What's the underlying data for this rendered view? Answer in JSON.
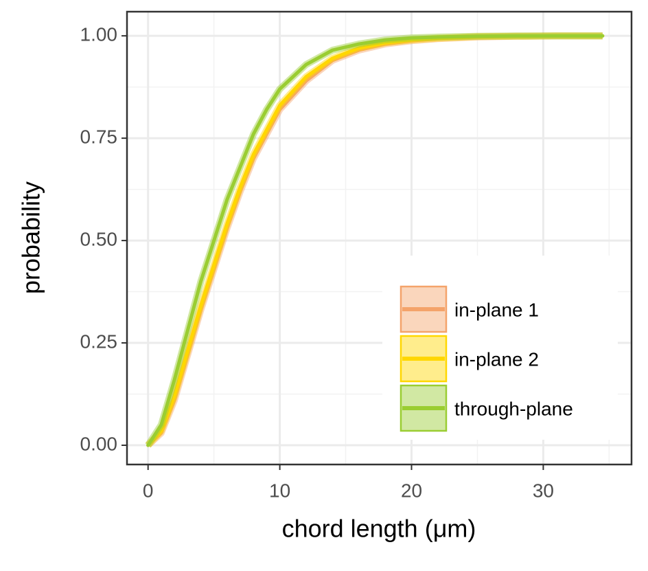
{
  "chart_data": {
    "type": "line",
    "x_label": "chord length (μm)",
    "y_label": "probability",
    "x": [
      0,
      1,
      2,
      3,
      4,
      5,
      6,
      7,
      8,
      9,
      10,
      12,
      14,
      16,
      18,
      20,
      22,
      25,
      28,
      31,
      34.5
    ],
    "series": [
      {
        "name": "in-plane 1",
        "color": "#f4a36a",
        "values": [
          0,
          0.03,
          0.11,
          0.22,
          0.33,
          0.43,
          0.53,
          0.62,
          0.7,
          0.76,
          0.82,
          0.89,
          0.94,
          0.965,
          0.98,
          0.988,
          0.993,
          0.997,
          0.999,
          1,
          1
        ]
      },
      {
        "name": "in-plane 2",
        "color": "#ffd700",
        "values": [
          0,
          0.035,
          0.12,
          0.23,
          0.34,
          0.44,
          0.54,
          0.63,
          0.71,
          0.77,
          0.83,
          0.9,
          0.945,
          0.97,
          0.983,
          0.99,
          0.994,
          0.998,
          0.999,
          1,
          1
        ]
      },
      {
        "name": "through-plane",
        "color": "#9acd32",
        "values": [
          0,
          0.05,
          0.16,
          0.28,
          0.4,
          0.5,
          0.6,
          0.68,
          0.76,
          0.82,
          0.87,
          0.93,
          0.965,
          0.98,
          0.99,
          0.995,
          0.997,
          0.999,
          1,
          1,
          1
        ]
      }
    ],
    "xlim": [
      -1.6,
      36.7
    ],
    "ylim": [
      -0.047,
      1.059
    ],
    "xticks": [
      0,
      10,
      20,
      30
    ],
    "yticks": [
      {
        "value": 0,
        "label": "0.00"
      },
      {
        "value": 0.25,
        "label": "0.25"
      },
      {
        "value": 0.5,
        "label": "0.50"
      },
      {
        "value": 0.75,
        "label": "0.75"
      },
      {
        "value": 1,
        "label": "1.00"
      }
    ],
    "x_minor_ticks": [
      5,
      15,
      25,
      35
    ],
    "y_minor_ticks": [
      0.125,
      0.375,
      0.625,
      0.875
    ],
    "grid": true,
    "legend": "bottom-right"
  }
}
